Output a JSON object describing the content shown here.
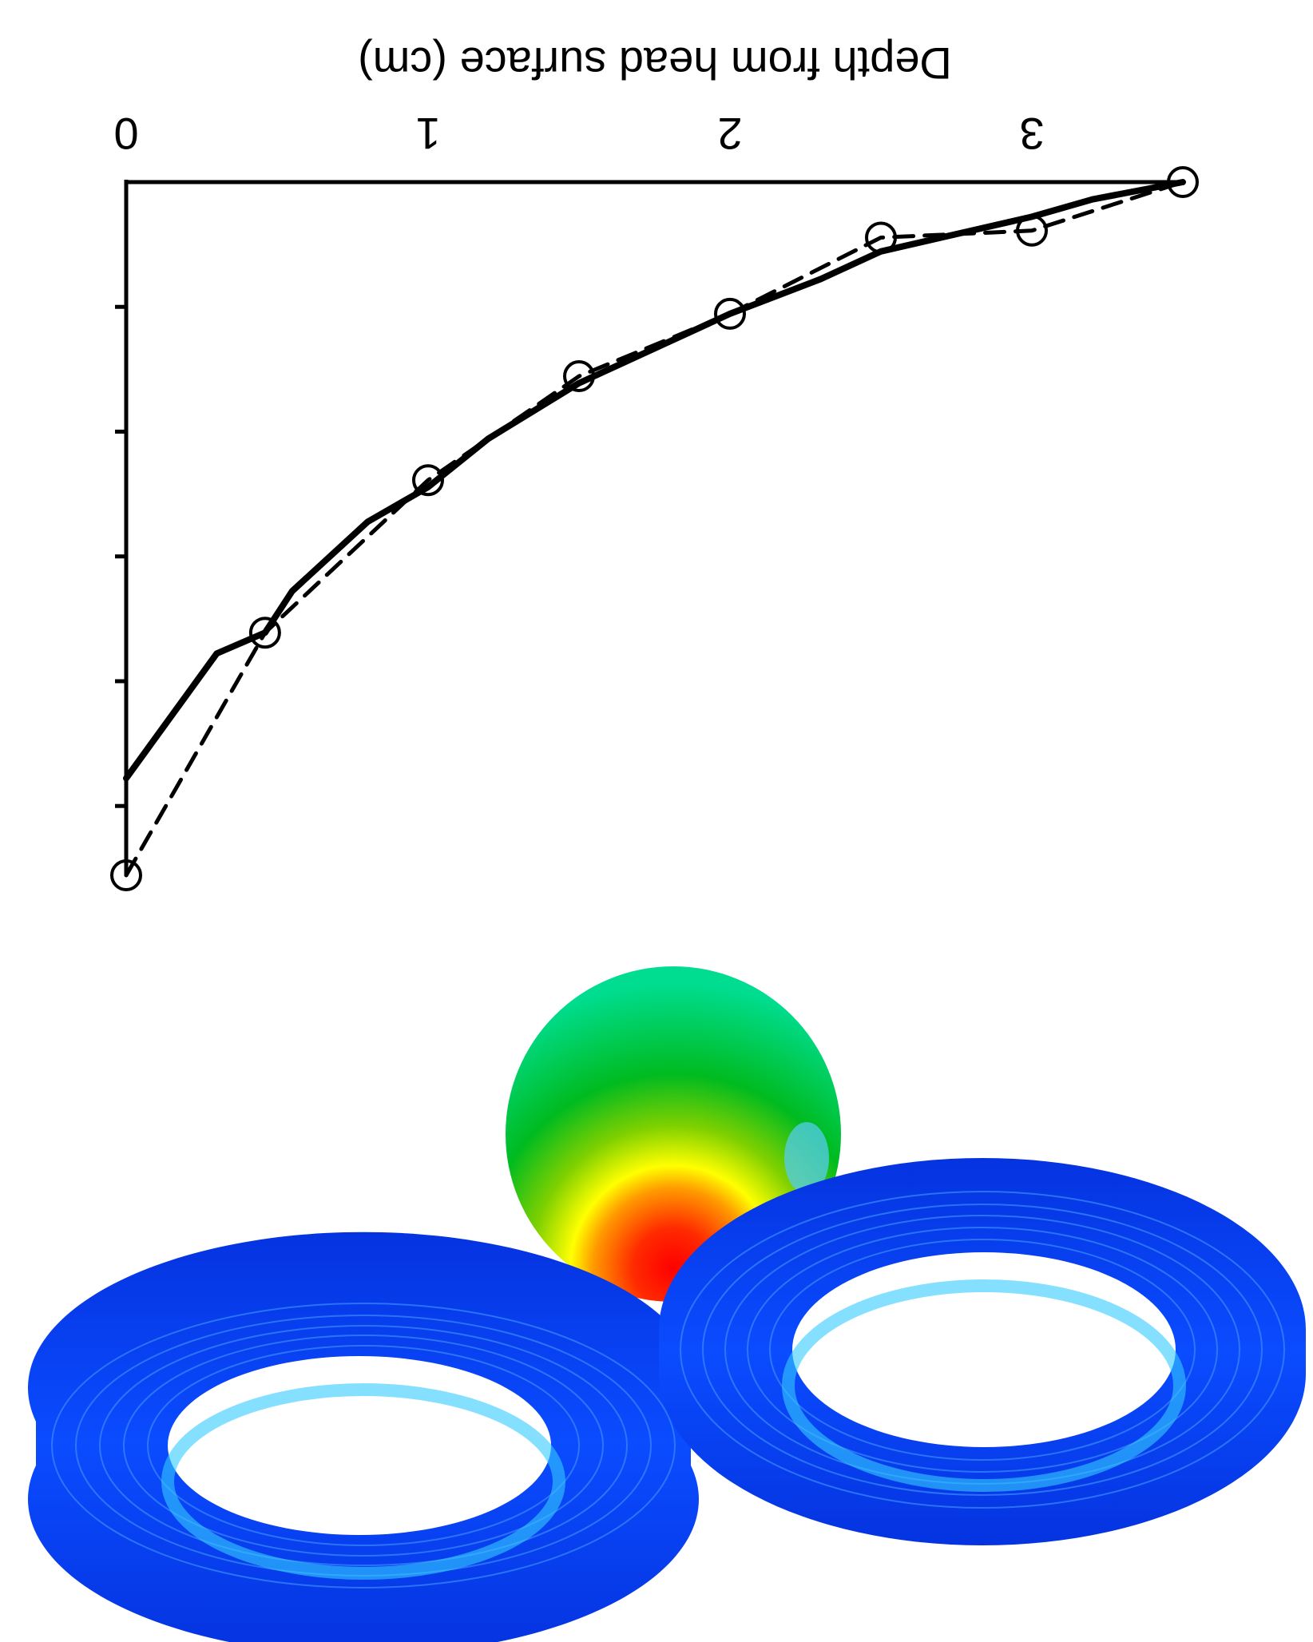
{
  "chart_data": {
    "type": "line",
    "xlabel": "Depth from head surface (cm)",
    "xlim": [
      0,
      3.5
    ],
    "x_ticks": [
      "0",
      "1",
      "2",
      "3"
    ],
    "ylabel": "",
    "y_ticks": [],
    "grid": false,
    "legend": "none",
    "series": [
      {
        "style": "solid",
        "x": [
          0.0,
          0.1,
          0.3,
          0.46,
          0.55,
          0.8,
          1.0,
          1.2,
          1.5,
          1.8,
          2.0,
          2.3,
          2.5,
          2.8,
          3.0,
          3.2,
          3.5
        ],
        "y": [
          0.86,
          0.8,
          0.68,
          0.65,
          0.59,
          0.49,
          0.44,
          0.37,
          0.29,
          0.23,
          0.19,
          0.14,
          0.1,
          0.07,
          0.05,
          0.025,
          0.0
        ]
      },
      {
        "style": "dashed",
        "x": [
          0.0,
          0.46,
          1.0,
          1.5,
          2.0,
          2.5,
          3.0,
          3.5
        ],
        "y": [
          1.0,
          0.65,
          0.43,
          0.28,
          0.19,
          0.08,
          0.07,
          0.0
        ]
      },
      {
        "style": "markers-open-circle",
        "x": [
          0.0,
          0.46,
          1.0,
          1.5,
          2.0,
          2.5,
          3.0,
          3.5
        ],
        "y": [
          1.0,
          0.65,
          0.43,
          0.28,
          0.19,
          0.08,
          0.07,
          0.0
        ]
      }
    ]
  },
  "illustration": {
    "sphere_colors": [
      "#00c060",
      "#7fd000",
      "#ffff00",
      "#ff8000",
      "#ff0000"
    ],
    "coil_colors": [
      "#0033dd",
      "#0a55ff",
      "#33bbff"
    ]
  }
}
